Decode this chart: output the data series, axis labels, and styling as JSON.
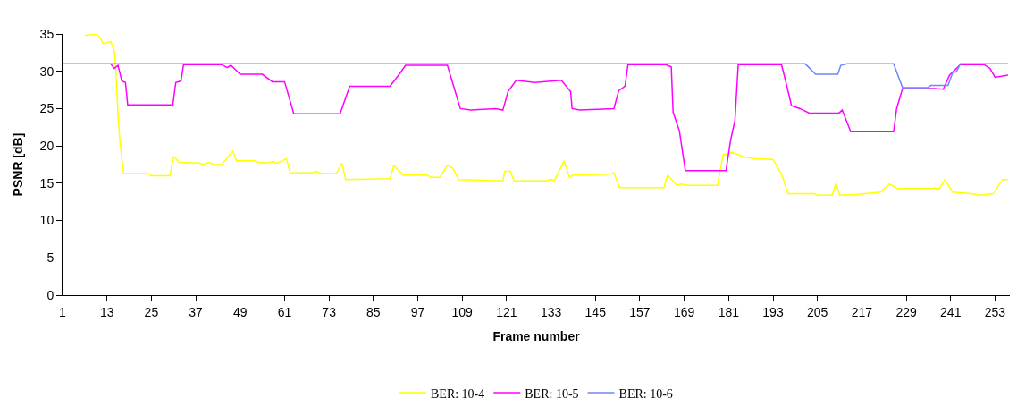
{
  "chart_data": {
    "type": "line",
    "xlabel": "Frame number",
    "ylabel": "PSNR [dB]",
    "xlim": [
      1,
      257
    ],
    "xticks": [
      1,
      13,
      25,
      37,
      49,
      61,
      73,
      85,
      97,
      109,
      121,
      133,
      145,
      157,
      169,
      181,
      193,
      205,
      217,
      229,
      241,
      253
    ],
    "ylim": [
      0,
      35
    ],
    "yticks": [
      0,
      5,
      10,
      15,
      20,
      25,
      30,
      35
    ],
    "grid": false,
    "legend": "bottom",
    "marker": "none",
    "line_style": "solid",
    "series": [
      {
        "name": "BER: 10-4",
        "color": "#ffff00",
        "x": [
          7,
          10,
          11,
          12,
          14,
          15,
          15.3,
          16,
          16.5,
          17.5,
          24,
          25,
          30,
          31,
          32.5,
          38,
          39,
          40.5,
          42,
          44,
          47,
          48,
          53,
          54,
          56,
          58,
          59,
          61.5,
          62.5,
          68.5,
          69.5,
          71,
          75,
          76.5,
          77.5,
          89.5,
          90.5,
          93,
          99.5,
          100.5,
          103,
          105,
          106.5,
          108,
          120,
          120.5,
          122,
          123,
          131.5,
          132.5,
          134,
          136.5,
          138,
          139,
          149,
          150,
          151.5,
          163.5,
          164.5,
          167,
          168,
          170,
          178,
          179.5,
          182,
          185.5,
          188,
          193,
          195.5,
          197,
          204,
          205,
          209,
          210,
          211,
          216,
          222,
          224.5,
          226.5,
          238,
          239.5,
          241.5,
          246.5,
          249,
          252.5,
          255,
          256.5
        ],
        "values": [
          34.8,
          35.0,
          34.6,
          33.7,
          34.0,
          32.7,
          30.9,
          24.2,
          20.6,
          16.3,
          16.3,
          16.0,
          16.0,
          18.6,
          17.8,
          17.7,
          17.5,
          17.8,
          17.5,
          17.5,
          19.3,
          18.0,
          18.0,
          17.8,
          17.7,
          17.9,
          17.7,
          18.3,
          16.4,
          16.4,
          16.6,
          16.3,
          16.3,
          17.7,
          15.5,
          15.6,
          17.4,
          16.1,
          16.1,
          15.8,
          15.8,
          17.4,
          17.0,
          15.5,
          15.3,
          16.6,
          16.6,
          15.3,
          15.3,
          15.5,
          15.4,
          18.0,
          15.8,
          16.1,
          16.2,
          16.4,
          14.4,
          14.4,
          16.1,
          14.7,
          14.9,
          14.7,
          14.7,
          18.8,
          19.1,
          18.5,
          18.3,
          18.2,
          16.0,
          13.6,
          13.6,
          13.4,
          13.4,
          15.0,
          13.4,
          13.5,
          13.8,
          14.9,
          14.3,
          14.3,
          15.5,
          13.8,
          13.6,
          13.4,
          13.6,
          15.5,
          15.5
        ]
      },
      {
        "name": "BER: 10-5",
        "color": "#ff00ff",
        "x": [
          14,
          15,
          16,
          17,
          18,
          18.6,
          30.8,
          31.6,
          33,
          33.7,
          44,
          45.5,
          46.5,
          49,
          55,
          57.7,
          61,
          63.5,
          76,
          78.6,
          89.5,
          92,
          93.7,
          105,
          108.5,
          111.3,
          118,
          120,
          121.4,
          123.6,
          128.6,
          135.8,
          138.3,
          138.7,
          140.8,
          150,
          151.3,
          153,
          153.8,
          164,
          165.5,
          166,
          167.7,
          169.3,
          180.3,
          181.5,
          182.7,
          183.6,
          195.3,
          196.5,
          198,
          200.3,
          202.8,
          210.8,
          211.7,
          214,
          225.6,
          226.4,
          228,
          236.5,
          239,
          240.7,
          243.6,
          250,
          251.6,
          253,
          256.5
        ],
        "values": [
          31.0,
          30.4,
          30.8,
          28.7,
          28.5,
          25.5,
          25.5,
          28.5,
          28.7,
          30.9,
          30.9,
          30.5,
          30.8,
          29.6,
          29.6,
          28.6,
          28.6,
          24.3,
          24.3,
          28.0,
          28.0,
          29.6,
          30.8,
          30.8,
          25.0,
          24.8,
          25.0,
          24.8,
          27.3,
          28.8,
          28.5,
          28.8,
          27.3,
          25.0,
          24.8,
          25.0,
          27.4,
          28.0,
          30.9,
          30.9,
          30.6,
          24.5,
          22.0,
          16.7,
          16.7,
          20.7,
          23.4,
          30.9,
          30.9,
          28.5,
          25.4,
          25.0,
          24.4,
          24.4,
          24.8,
          21.9,
          21.9,
          25.0,
          27.7,
          27.7,
          27.6,
          29.5,
          30.9,
          30.9,
          30.4,
          29.2,
          29.5
        ]
      },
      {
        "name": "BER: 10-6",
        "color": "#6f86ff",
        "x": [
          1,
          201.7,
          204.5,
          210.5,
          211.3,
          213,
          225.6,
          228,
          234.8,
          235.6,
          240.3,
          241.6,
          242.5,
          243.6,
          256.5
        ],
        "values": [
          31.0,
          31.0,
          29.6,
          29.6,
          30.8,
          31.0,
          31.0,
          27.8,
          27.8,
          28.1,
          28.1,
          29.9,
          29.9,
          31.0,
          31.0
        ]
      }
    ]
  }
}
